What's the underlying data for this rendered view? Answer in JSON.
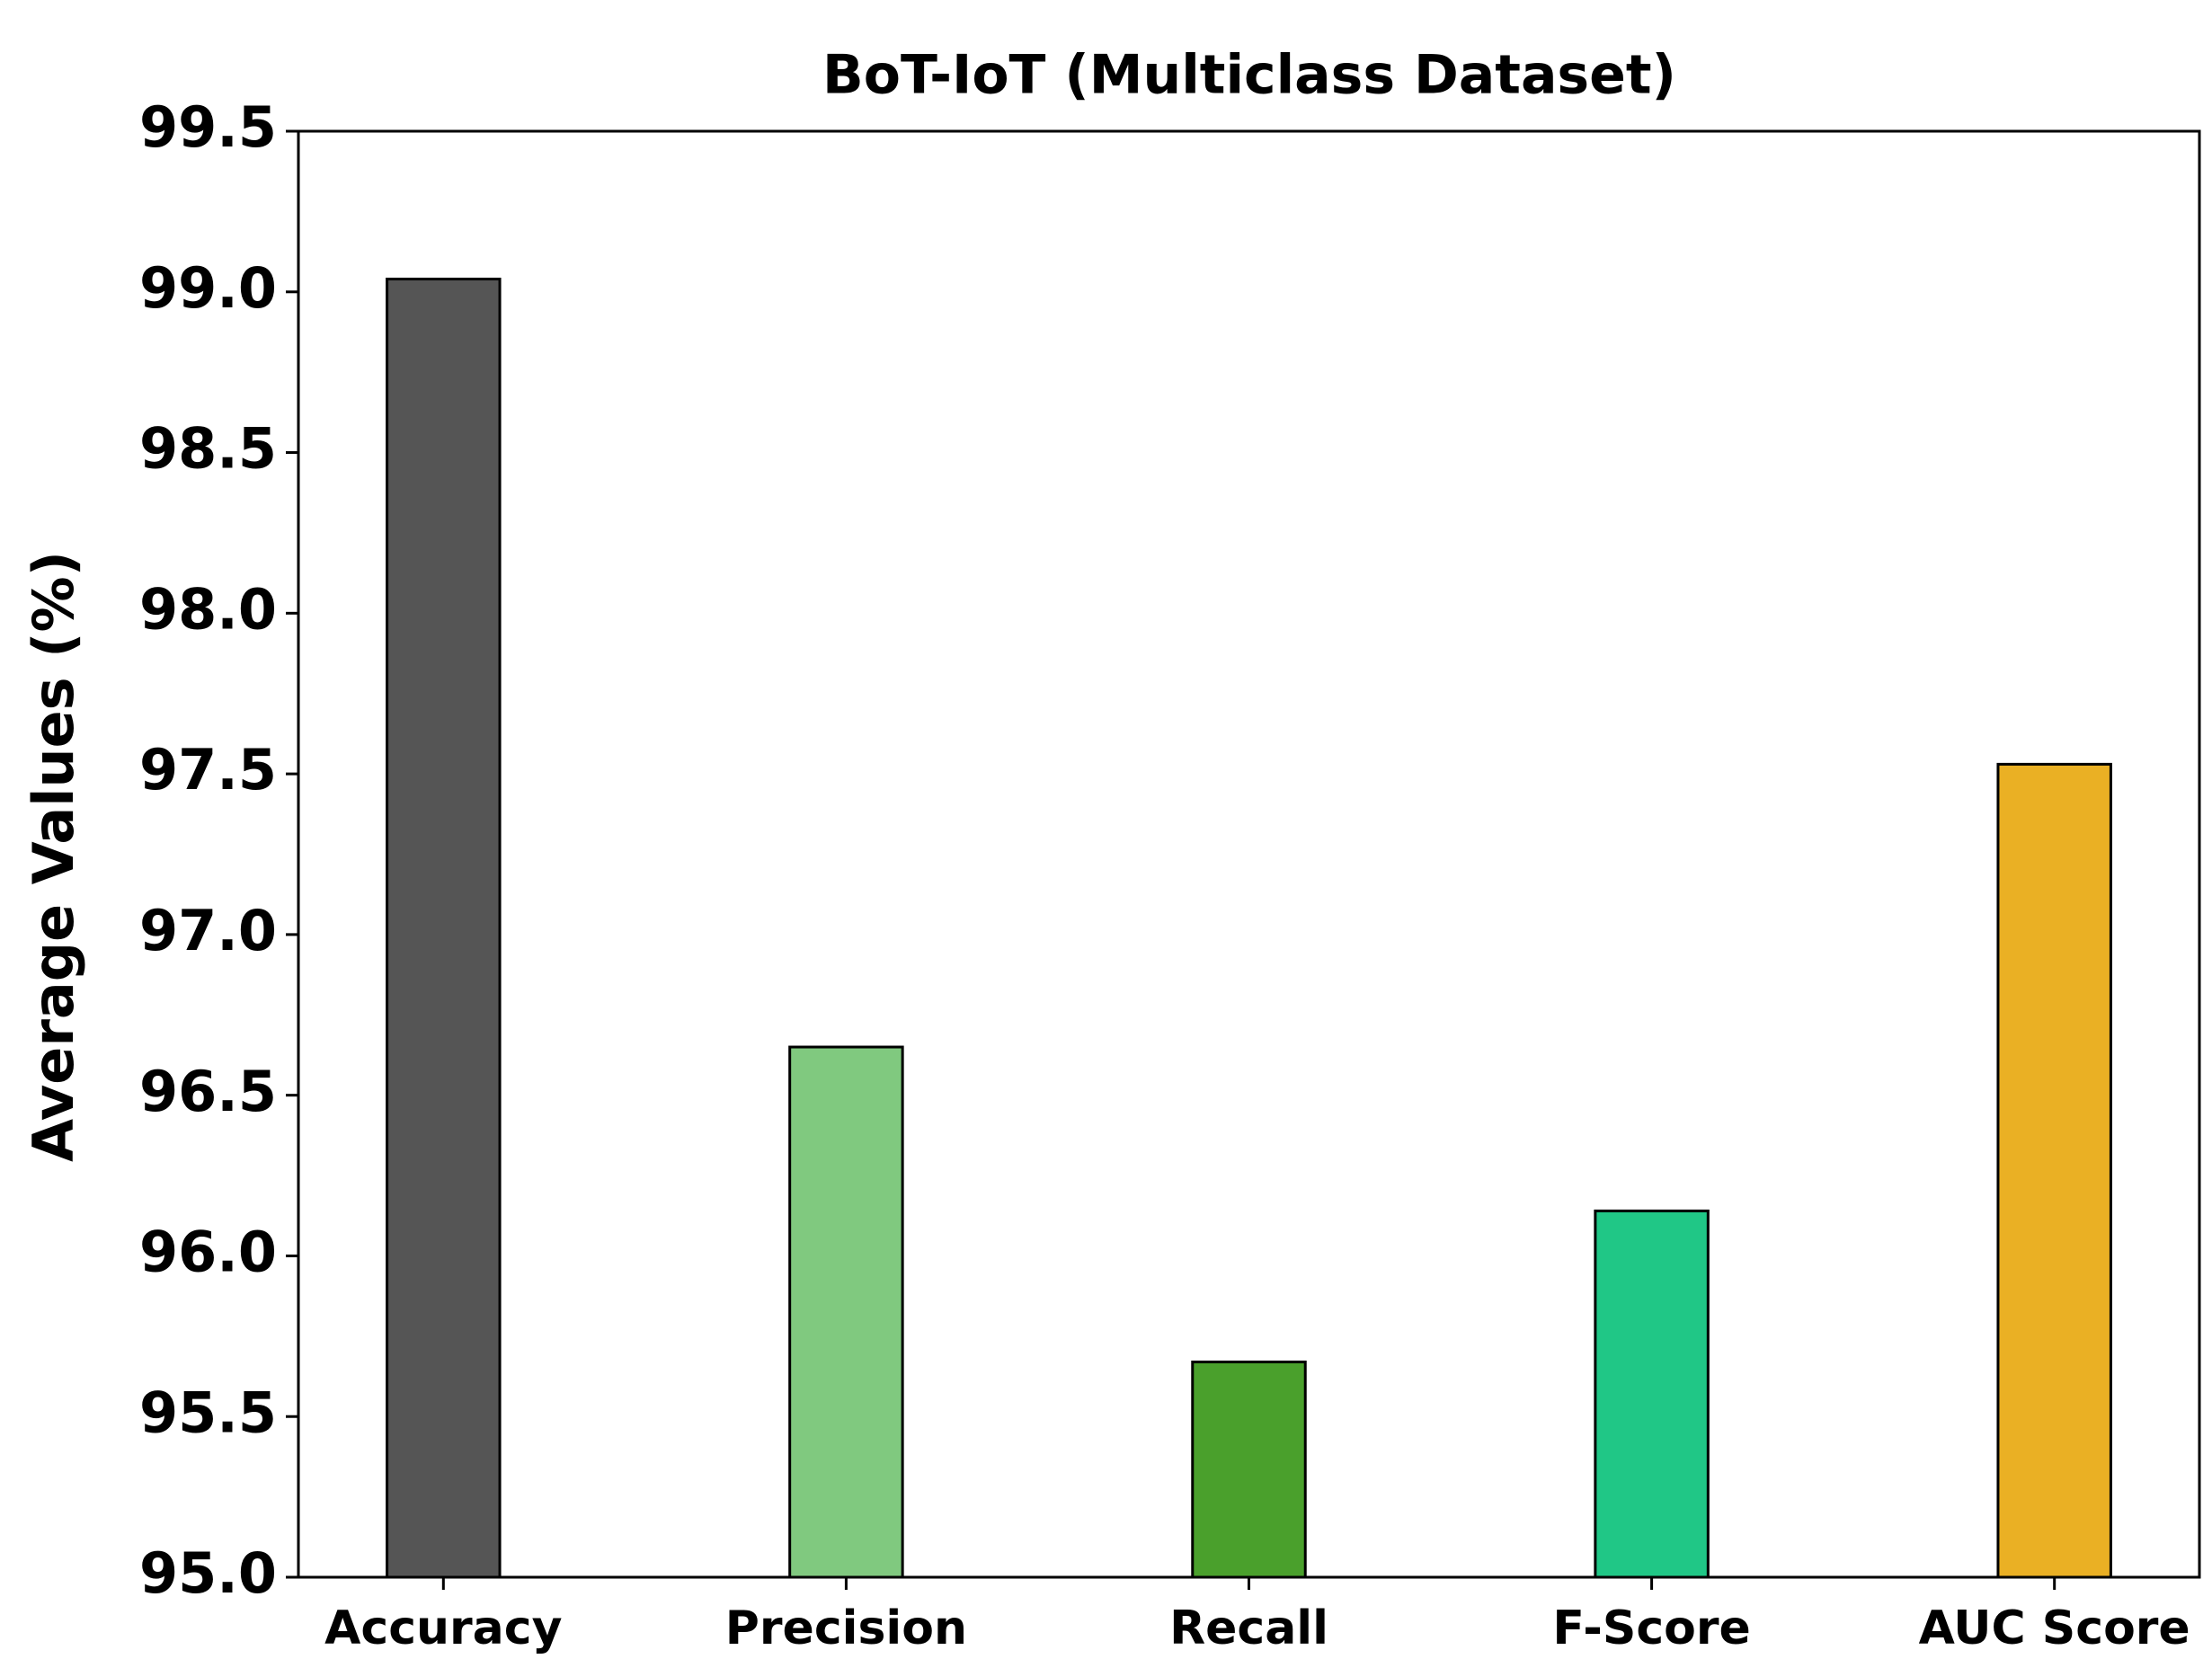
{
  "chart_data": {
    "type": "bar",
    "title": "BoT-IoT (Multiclass Dataset)",
    "y_label": "Average Values (%)",
    "categories": [
      "Accuracy",
      "Precision",
      "Recall",
      "F-Score",
      "AUC Score"
    ],
    "values": [
      99.04,
      96.65,
      95.67,
      96.14,
      97.53
    ],
    "colors": [
      "#555555",
      "#80c97f",
      "#4aa02c",
      "#20c786",
      "#eab024"
    ],
    "ylim": [
      95.0,
      99.5
    ],
    "yticks": [
      {
        "value": 95,
        "label": "95.0"
      },
      95.5,
      {
        "value": 96,
        "label": "96.0"
      },
      96.5,
      {
        "value": 97,
        "label": "97.0"
      },
      97.5,
      {
        "value": 98,
        "label": "98.0"
      },
      98.5,
      {
        "value": 99,
        "label": "99.0"
      },
      99.5
    ],
    "grid": false
  }
}
